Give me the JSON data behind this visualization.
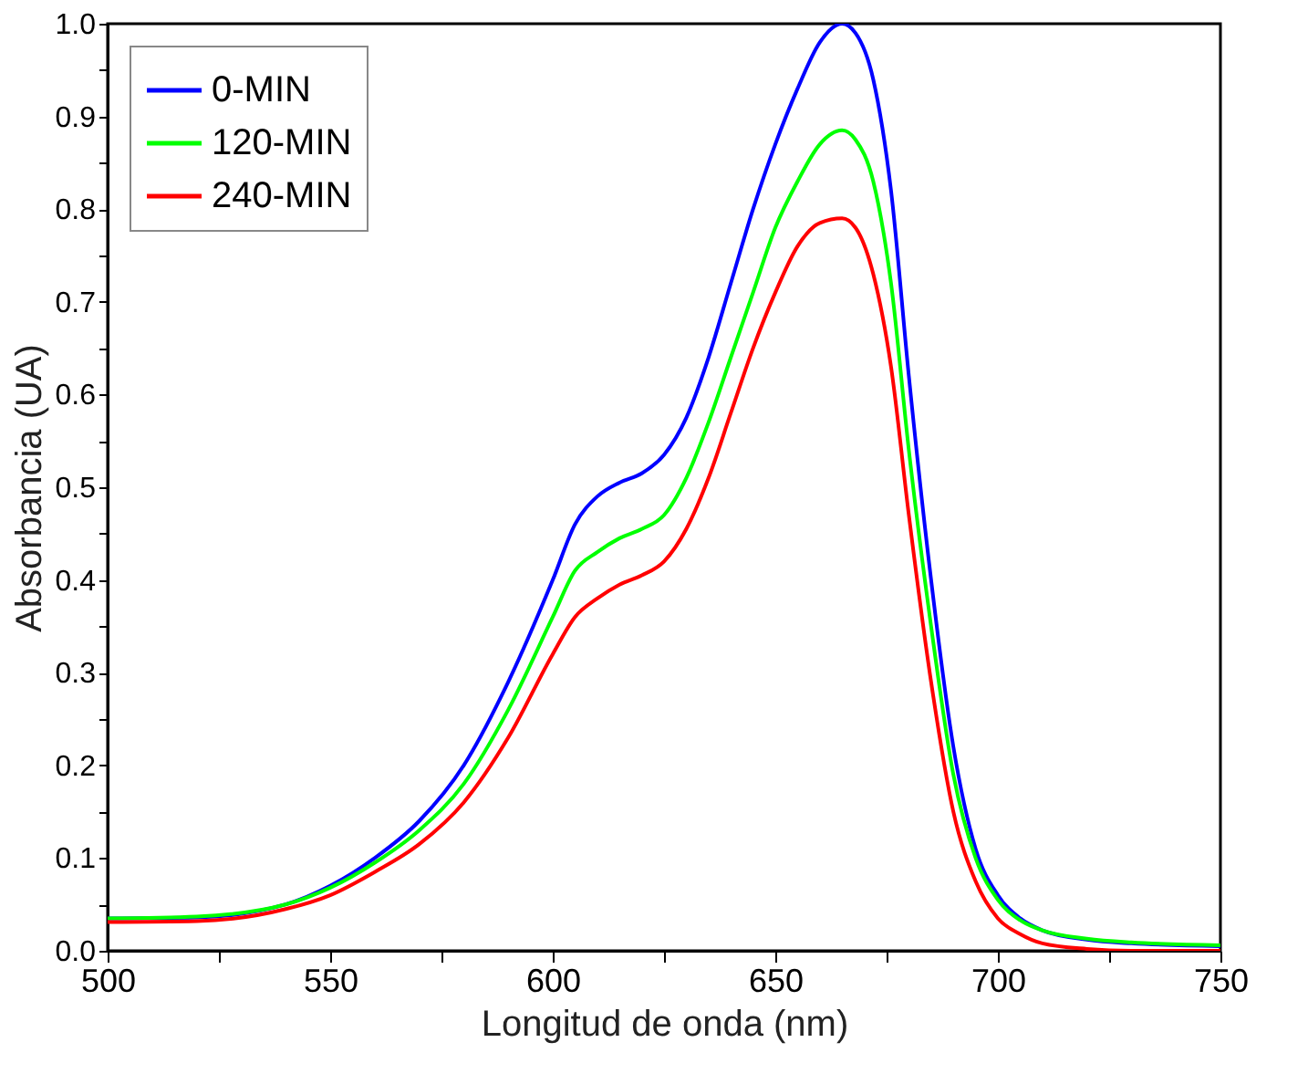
{
  "chart_data": {
    "type": "line",
    "xlabel": "Longitud de onda (nm)",
    "ylabel": "Absorbancia (UA)",
    "xlim": [
      500,
      750
    ],
    "ylim": [
      0,
      1.0
    ],
    "xticks": [
      500,
      {
        "value": 525,
        "label": null
      },
      550,
      {
        "value": 575,
        "label": null
      },
      600,
      {
        "value": 625,
        "label": null
      },
      650,
      {
        "value": 675,
        "label": null
      },
      700,
      {
        "value": 725,
        "label": null
      },
      750
    ],
    "yticks": [
      {
        "value": 0,
        "label": "0.0"
      },
      {
        "value": 0.05,
        "label": null
      },
      {
        "value": 0.1,
        "label": "0.1"
      },
      {
        "value": 0.15,
        "label": null
      },
      {
        "value": 0.2,
        "label": "0.2"
      },
      {
        "value": 0.25,
        "label": null
      },
      {
        "value": 0.3,
        "label": "0.3"
      },
      {
        "value": 0.35,
        "label": null
      },
      {
        "value": 0.4,
        "label": "0.4"
      },
      {
        "value": 0.45,
        "label": null
      },
      {
        "value": 0.5,
        "label": "0.5"
      },
      {
        "value": 0.55,
        "label": null
      },
      {
        "value": 0.6,
        "label": "0.6"
      },
      {
        "value": 0.65,
        "label": null
      },
      {
        "value": 0.7,
        "label": "0.7"
      },
      {
        "value": 0.75,
        "label": null
      },
      {
        "value": 0.8,
        "label": "0.8"
      },
      {
        "value": 0.85,
        "label": null
      },
      {
        "value": 0.9,
        "label": "0.9"
      },
      {
        "value": 0.95,
        "label": null
      },
      {
        "value": 1.0,
        "label": "1.0"
      }
    ],
    "x": [
      500,
      520,
      540,
      550,
      560,
      570,
      580,
      590,
      600,
      605,
      610,
      615,
      620,
      625,
      630,
      635,
      640,
      645,
      650,
      655,
      660,
      665,
      668,
      672,
      676,
      680,
      685,
      690,
      695,
      700,
      705,
      710,
      720,
      730,
      750
    ],
    "legend": "top left",
    "grid": false,
    "marker": "none",
    "line_style": "solid",
    "series": [
      {
        "name": "0-MIN",
        "color": "#0000ff",
        "values": [
          0.035,
          0.036,
          0.05,
          0.07,
          0.1,
          0.14,
          0.2,
          0.29,
          0.4,
          0.46,
          0.49,
          0.505,
          0.515,
          0.535,
          0.575,
          0.64,
          0.72,
          0.8,
          0.87,
          0.93,
          0.98,
          1.0,
          0.99,
          0.94,
          0.82,
          0.62,
          0.4,
          0.22,
          0.11,
          0.06,
          0.035,
          0.022,
          0.012,
          0.008,
          0.005
        ]
      },
      {
        "name": "120-MIN",
        "color": "#00ff00",
        "values": [
          0.035,
          0.037,
          0.05,
          0.068,
          0.095,
          0.13,
          0.18,
          0.26,
          0.36,
          0.41,
          0.43,
          0.445,
          0.455,
          0.47,
          0.51,
          0.57,
          0.64,
          0.71,
          0.78,
          0.83,
          0.87,
          0.885,
          0.875,
          0.83,
          0.72,
          0.54,
          0.35,
          0.19,
          0.1,
          0.055,
          0.033,
          0.022,
          0.013,
          0.009,
          0.006
        ]
      },
      {
        "name": "240-MIN",
        "color": "#ff0000",
        "values": [
          0.031,
          0.032,
          0.045,
          0.06,
          0.085,
          0.115,
          0.16,
          0.23,
          0.32,
          0.36,
          0.38,
          0.395,
          0.405,
          0.42,
          0.455,
          0.51,
          0.58,
          0.65,
          0.71,
          0.76,
          0.785,
          0.79,
          0.78,
          0.73,
          0.63,
          0.47,
          0.29,
          0.15,
          0.075,
          0.035,
          0.018,
          0.008,
          0.002,
          0.0,
          0.0
        ]
      }
    ]
  }
}
